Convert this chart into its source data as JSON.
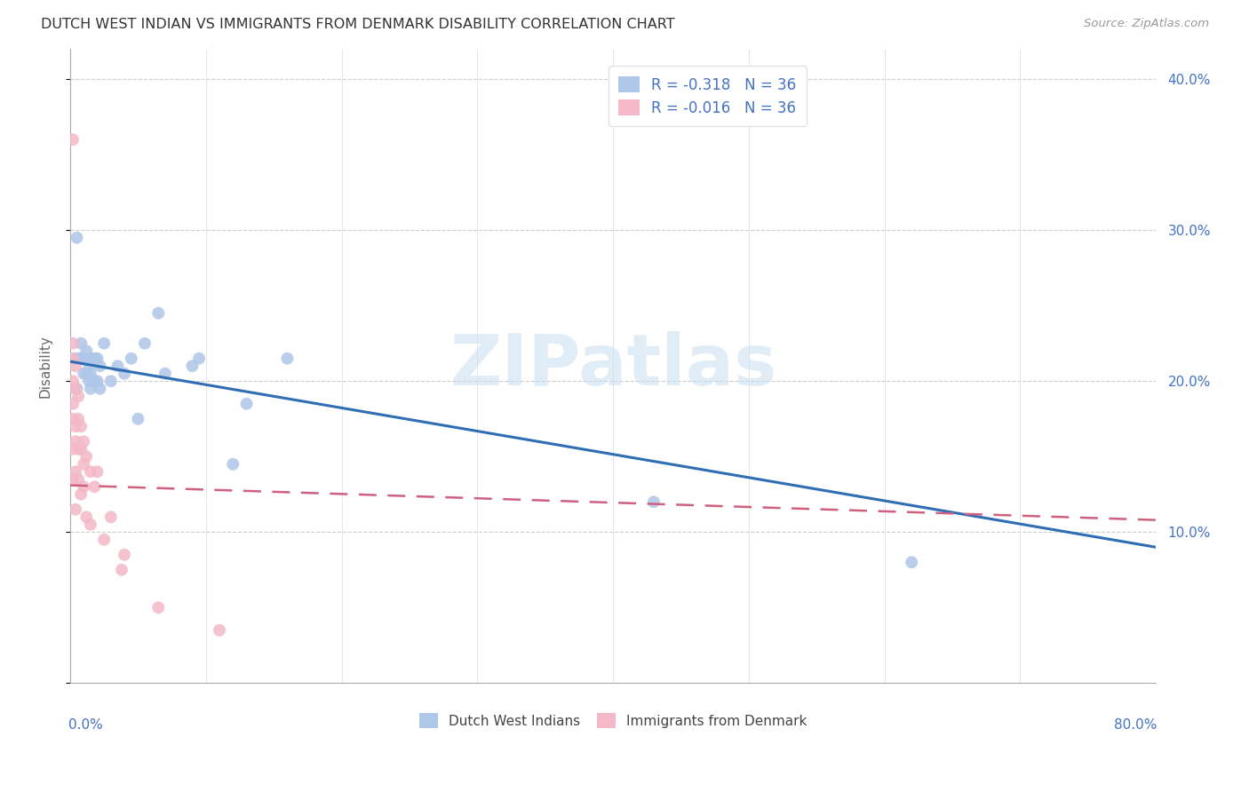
{
  "title": "DUTCH WEST INDIAN VS IMMIGRANTS FROM DENMARK DISABILITY CORRELATION CHART",
  "source": "Source: ZipAtlas.com",
  "ylabel": "Disability",
  "yticks": [
    0.0,
    0.1,
    0.2,
    0.3,
    0.4
  ],
  "ytick_labels_right": [
    "",
    "10.0%",
    "20.0%",
    "30.0%",
    "40.0%"
  ],
  "xlim": [
    0.0,
    0.8
  ],
  "ylim": [
    0.0,
    0.42
  ],
  "legend1_r": "-0.318",
  "legend1_n": "36",
  "legend2_r": "-0.016",
  "legend2_n": "36",
  "color_blue": "#aec6e8",
  "color_pink": "#f4b8c8",
  "trendline_blue": "#2f6db5",
  "trendline_pink": "#d06080",
  "watermark": "ZIPatlas",
  "legend_label1": "Dutch West Indians",
  "legend_label2": "Immigrants from Denmark",
  "blue_x": [
    0.005,
    0.005,
    0.008,
    0.008,
    0.01,
    0.01,
    0.012,
    0.012,
    0.014,
    0.014,
    0.015,
    0.015,
    0.015,
    0.018,
    0.018,
    0.02,
    0.02,
    0.022,
    0.022,
    0.025,
    0.03,
    0.035,
    0.04,
    0.045,
    0.05,
    0.055,
    0.065,
    0.07,
    0.09,
    0.095,
    0.12,
    0.13,
    0.16,
    0.43,
    0.62,
    0.005
  ],
  "blue_y": [
    0.215,
    0.195,
    0.225,
    0.215,
    0.215,
    0.205,
    0.22,
    0.205,
    0.21,
    0.2,
    0.215,
    0.205,
    0.195,
    0.215,
    0.2,
    0.215,
    0.2,
    0.21,
    0.195,
    0.225,
    0.2,
    0.21,
    0.205,
    0.215,
    0.175,
    0.225,
    0.245,
    0.205,
    0.21,
    0.215,
    0.145,
    0.185,
    0.215,
    0.12,
    0.08,
    0.295
  ],
  "pink_x": [
    0.002,
    0.002,
    0.002,
    0.002,
    0.002,
    0.002,
    0.002,
    0.002,
    0.004,
    0.004,
    0.004,
    0.004,
    0.004,
    0.004,
    0.006,
    0.006,
    0.006,
    0.006,
    0.008,
    0.008,
    0.008,
    0.01,
    0.01,
    0.01,
    0.012,
    0.012,
    0.015,
    0.015,
    0.018,
    0.02,
    0.025,
    0.03,
    0.038,
    0.04,
    0.065,
    0.11
  ],
  "pink_y": [
    0.36,
    0.225,
    0.215,
    0.2,
    0.185,
    0.175,
    0.155,
    0.135,
    0.21,
    0.195,
    0.17,
    0.16,
    0.14,
    0.115,
    0.19,
    0.175,
    0.155,
    0.135,
    0.17,
    0.155,
    0.125,
    0.16,
    0.145,
    0.13,
    0.15,
    0.11,
    0.14,
    0.105,
    0.13,
    0.14,
    0.095,
    0.11,
    0.075,
    0.085,
    0.05,
    0.035
  ],
  "blue_trend_x0": 0.0,
  "blue_trend_y0": 0.213,
  "blue_trend_x1": 0.8,
  "blue_trend_y1": 0.09,
  "pink_trend_x0": 0.0,
  "pink_trend_y0": 0.131,
  "pink_trend_x1": 0.8,
  "pink_trend_y1": 0.108
}
